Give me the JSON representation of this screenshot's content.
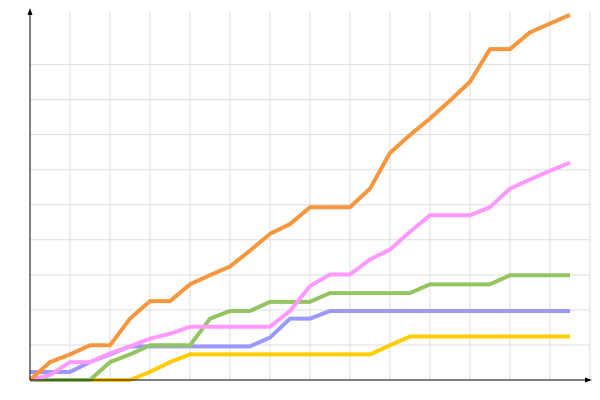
{
  "chart_data": {
    "type": "line",
    "x": [
      0,
      1,
      2,
      3,
      4,
      5,
      6,
      7,
      8,
      9,
      10,
      11,
      12,
      13,
      14,
      15,
      16,
      17,
      18,
      19,
      20,
      21,
      22,
      23,
      24,
      25,
      26,
      27
    ],
    "xlim": [
      0,
      28
    ],
    "xticks": [
      2,
      4,
      6,
      8,
      10,
      12,
      14,
      16,
      18,
      20,
      22,
      24,
      26,
      28
    ],
    "ylim": [
      0,
      10.5
    ],
    "yticks": [
      1,
      2,
      3,
      4,
      5,
      6,
      7,
      8,
      9
    ],
    "grid": true,
    "tick_labels": false,
    "series": [
      {
        "color": "#9999ff",
        "values": [
          0.23,
          0.23,
          0.23,
          0.51,
          0.73,
          0.96,
          0.96,
          0.96,
          0.96,
          0.96,
          0.96,
          0.96,
          1.21,
          1.75,
          1.75,
          1.97,
          1.97,
          1.97,
          1.97,
          1.97,
          1.97,
          1.97,
          1.97,
          1.97,
          1.97,
          1.97,
          1.97,
          1.97
        ]
      },
      {
        "color": "#ffcc00",
        "values": [
          0,
          0,
          0,
          0,
          0,
          0,
          0.23,
          0.51,
          0.73,
          0.73,
          0.73,
          0.73,
          0.73,
          0.73,
          0.73,
          0.73,
          0.73,
          0.73,
          0.99,
          1.24,
          1.24,
          1.24,
          1.24,
          1.24,
          1.24,
          1.24,
          1.24,
          1.24
        ]
      },
      {
        "color": "#92c45f",
        "values": [
          0,
          0,
          0,
          0,
          0.51,
          0.73,
          0.99,
          0.99,
          0.99,
          1.75,
          1.97,
          1.97,
          2.23,
          2.23,
          2.23,
          2.48,
          2.48,
          2.48,
          2.48,
          2.48,
          2.73,
          2.73,
          2.73,
          2.73,
          2.99,
          2.99,
          2.99,
          2.99
        ]
      },
      {
        "color": "#ff99ff",
        "values": [
          0,
          0.14,
          0.51,
          0.51,
          0.76,
          0.96,
          1.18,
          1.32,
          1.52,
          1.52,
          1.52,
          1.52,
          1.52,
          1.97,
          2.68,
          3.01,
          3.01,
          3.44,
          3.72,
          4.23,
          4.7,
          4.7,
          4.7,
          4.93,
          5.46,
          5.72,
          5.97,
          6.2
        ]
      },
      {
        "color": "#f7963c",
        "values": [
          0,
          0.51,
          0.73,
          0.99,
          0.99,
          1.75,
          2.25,
          2.25,
          2.73,
          2.99,
          3.24,
          3.69,
          4.17,
          4.45,
          4.93,
          4.93,
          4.93,
          5.46,
          6.48,
          6.99,
          7.46,
          7.97,
          8.51,
          9.44,
          9.44,
          9.92,
          10.17,
          10.42
        ]
      }
    ]
  }
}
